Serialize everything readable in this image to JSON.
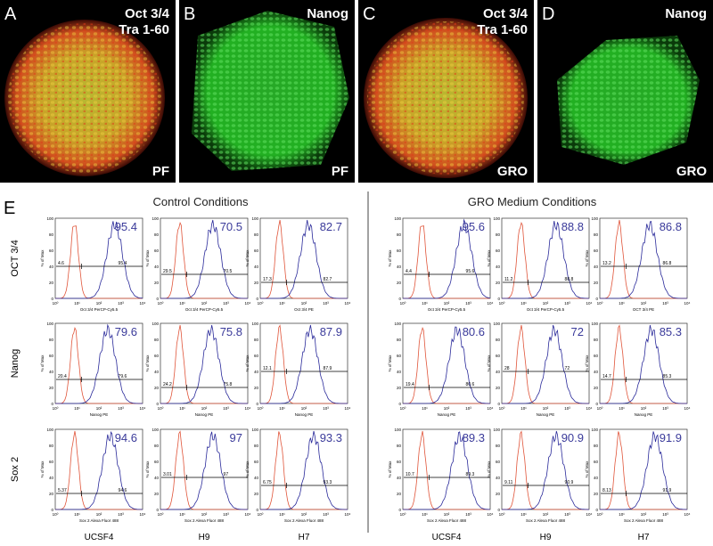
{
  "figure": {
    "top_panels": [
      {
        "letter": "A",
        "stain": [
          "Oct 3/4",
          "Tra 1-60"
        ],
        "condition": "PF"
      },
      {
        "letter": "B",
        "stain": [
          "Nanog"
        ],
        "condition": "PF"
      },
      {
        "letter": "C",
        "stain": [
          "Oct 3/4",
          "Tra 1-60"
        ],
        "condition": "GRO"
      },
      {
        "letter": "D",
        "stain": [
          "Nanog"
        ],
        "condition": "GRO"
      }
    ],
    "section_e": {
      "letter": "E",
      "row_labels": [
        "OCT 3/4",
        "Nanog",
        "Sox 2"
      ],
      "y_axis_label": "% of Max",
      "y_ticks": [
        0,
        20,
        40,
        60,
        80,
        100
      ],
      "x_ticks": [
        "10⁰",
        "10¹",
        "10²",
        "10³",
        "10⁴"
      ],
      "groups": [
        {
          "title": "Control Conditions",
          "columns": [
            "UCSF4",
            "H9",
            "H7"
          ],
          "rows": [
            [
              {
                "value": 95.4,
                "gate_left": 4.6,
                "gate_right": 95.4,
                "x_label": "Oct 3/4 PerCP-Cy5.5"
              },
              {
                "value": 70.5,
                "gate_left": 29.5,
                "gate_right": 70.5,
                "x_label": "Oct 3/4 PerCP-Cy5.5"
              },
              {
                "value": 82.7,
                "gate_left": 17.3,
                "gate_right": 82.7,
                "x_label": "Oct 3/4 PE"
              }
            ],
            [
              {
                "value": 79.6,
                "gate_left": 20.4,
                "gate_right": 79.6,
                "x_label": "Nanog PE"
              },
              {
                "value": 75.8,
                "gate_left": 24.2,
                "gate_right": 75.8,
                "x_label": "Nanog PE"
              },
              {
                "value": 87.9,
                "gate_left": 12.1,
                "gate_right": 87.9,
                "x_label": "Nanog PE"
              }
            ],
            [
              {
                "value": 94.6,
                "gate_left": 5.37,
                "gate_right": 94.6,
                "x_label": "Sox 2 Alexa Fluor 488"
              },
              {
                "value": 97,
                "gate_left": 3.01,
                "gate_right": 97,
                "x_label": "Sox 2 Alexa Fluor 488"
              },
              {
                "value": 93.3,
                "gate_left": 6.75,
                "gate_right": 93.3,
                "x_label": "Sox 2 Alexa Fluor 488"
              }
            ]
          ]
        },
        {
          "title": "GRO Medium Conditions",
          "columns": [
            "UCSF4",
            "H9",
            "H7"
          ],
          "rows": [
            [
              {
                "value": 95.6,
                "gate_left": 4.4,
                "gate_right": 95.6,
                "x_label": "Oct 3/4 PerCP-Cy5.5"
              },
              {
                "value": 88.8,
                "gate_left": 11.2,
                "gate_right": 88.8,
                "x_label": "Oct 3/4 PerCP-Cy5.5"
              },
              {
                "value": 86.8,
                "gate_left": 13.2,
                "gate_right": 86.8,
                "x_label": "OCT 3/4 PE"
              }
            ],
            [
              {
                "value": 80.6,
                "gate_left": 19.4,
                "gate_right": 80.6,
                "x_label": "Nanog PE"
              },
              {
                "value": 72,
                "gate_left": 28,
                "gate_right": 72,
                "x_label": "Nanog PE"
              },
              {
                "value": 85.3,
                "gate_left": 14.7,
                "gate_right": 85.3,
                "x_label": "Nanog PE"
              }
            ],
            [
              {
                "value": 89.3,
                "gate_left": 10.7,
                "gate_right": 89.3,
                "x_label": "Sox 2 Alexa Fluor 488"
              },
              {
                "value": 90.9,
                "gate_left": 9.11,
                "gate_right": 90.9,
                "x_label": "Sox 2 Alexa Fluor 488"
              },
              {
                "value": 91.9,
                "gate_left": 8.13,
                "gate_right": 91.9,
                "x_label": "Sox 2 Alexa Fluor 488"
              }
            ]
          ]
        }
      ]
    }
  }
}
